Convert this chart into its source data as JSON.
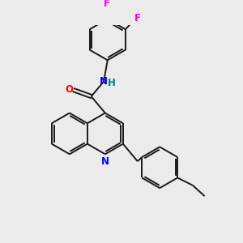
{
  "bg_color": "#ebebeb",
  "bond_color": "#1a1a1a",
  "N_color": "#0000ff",
  "O_color": "#ff0000",
  "F_color": "#ff00cc",
  "NH_color": "#008080",
  "lw": 1.4,
  "figsize": [
    3.0,
    3.0
  ],
  "dpi": 100,
  "xlim": [
    0,
    10
  ],
  "ylim": [
    0,
    10
  ]
}
